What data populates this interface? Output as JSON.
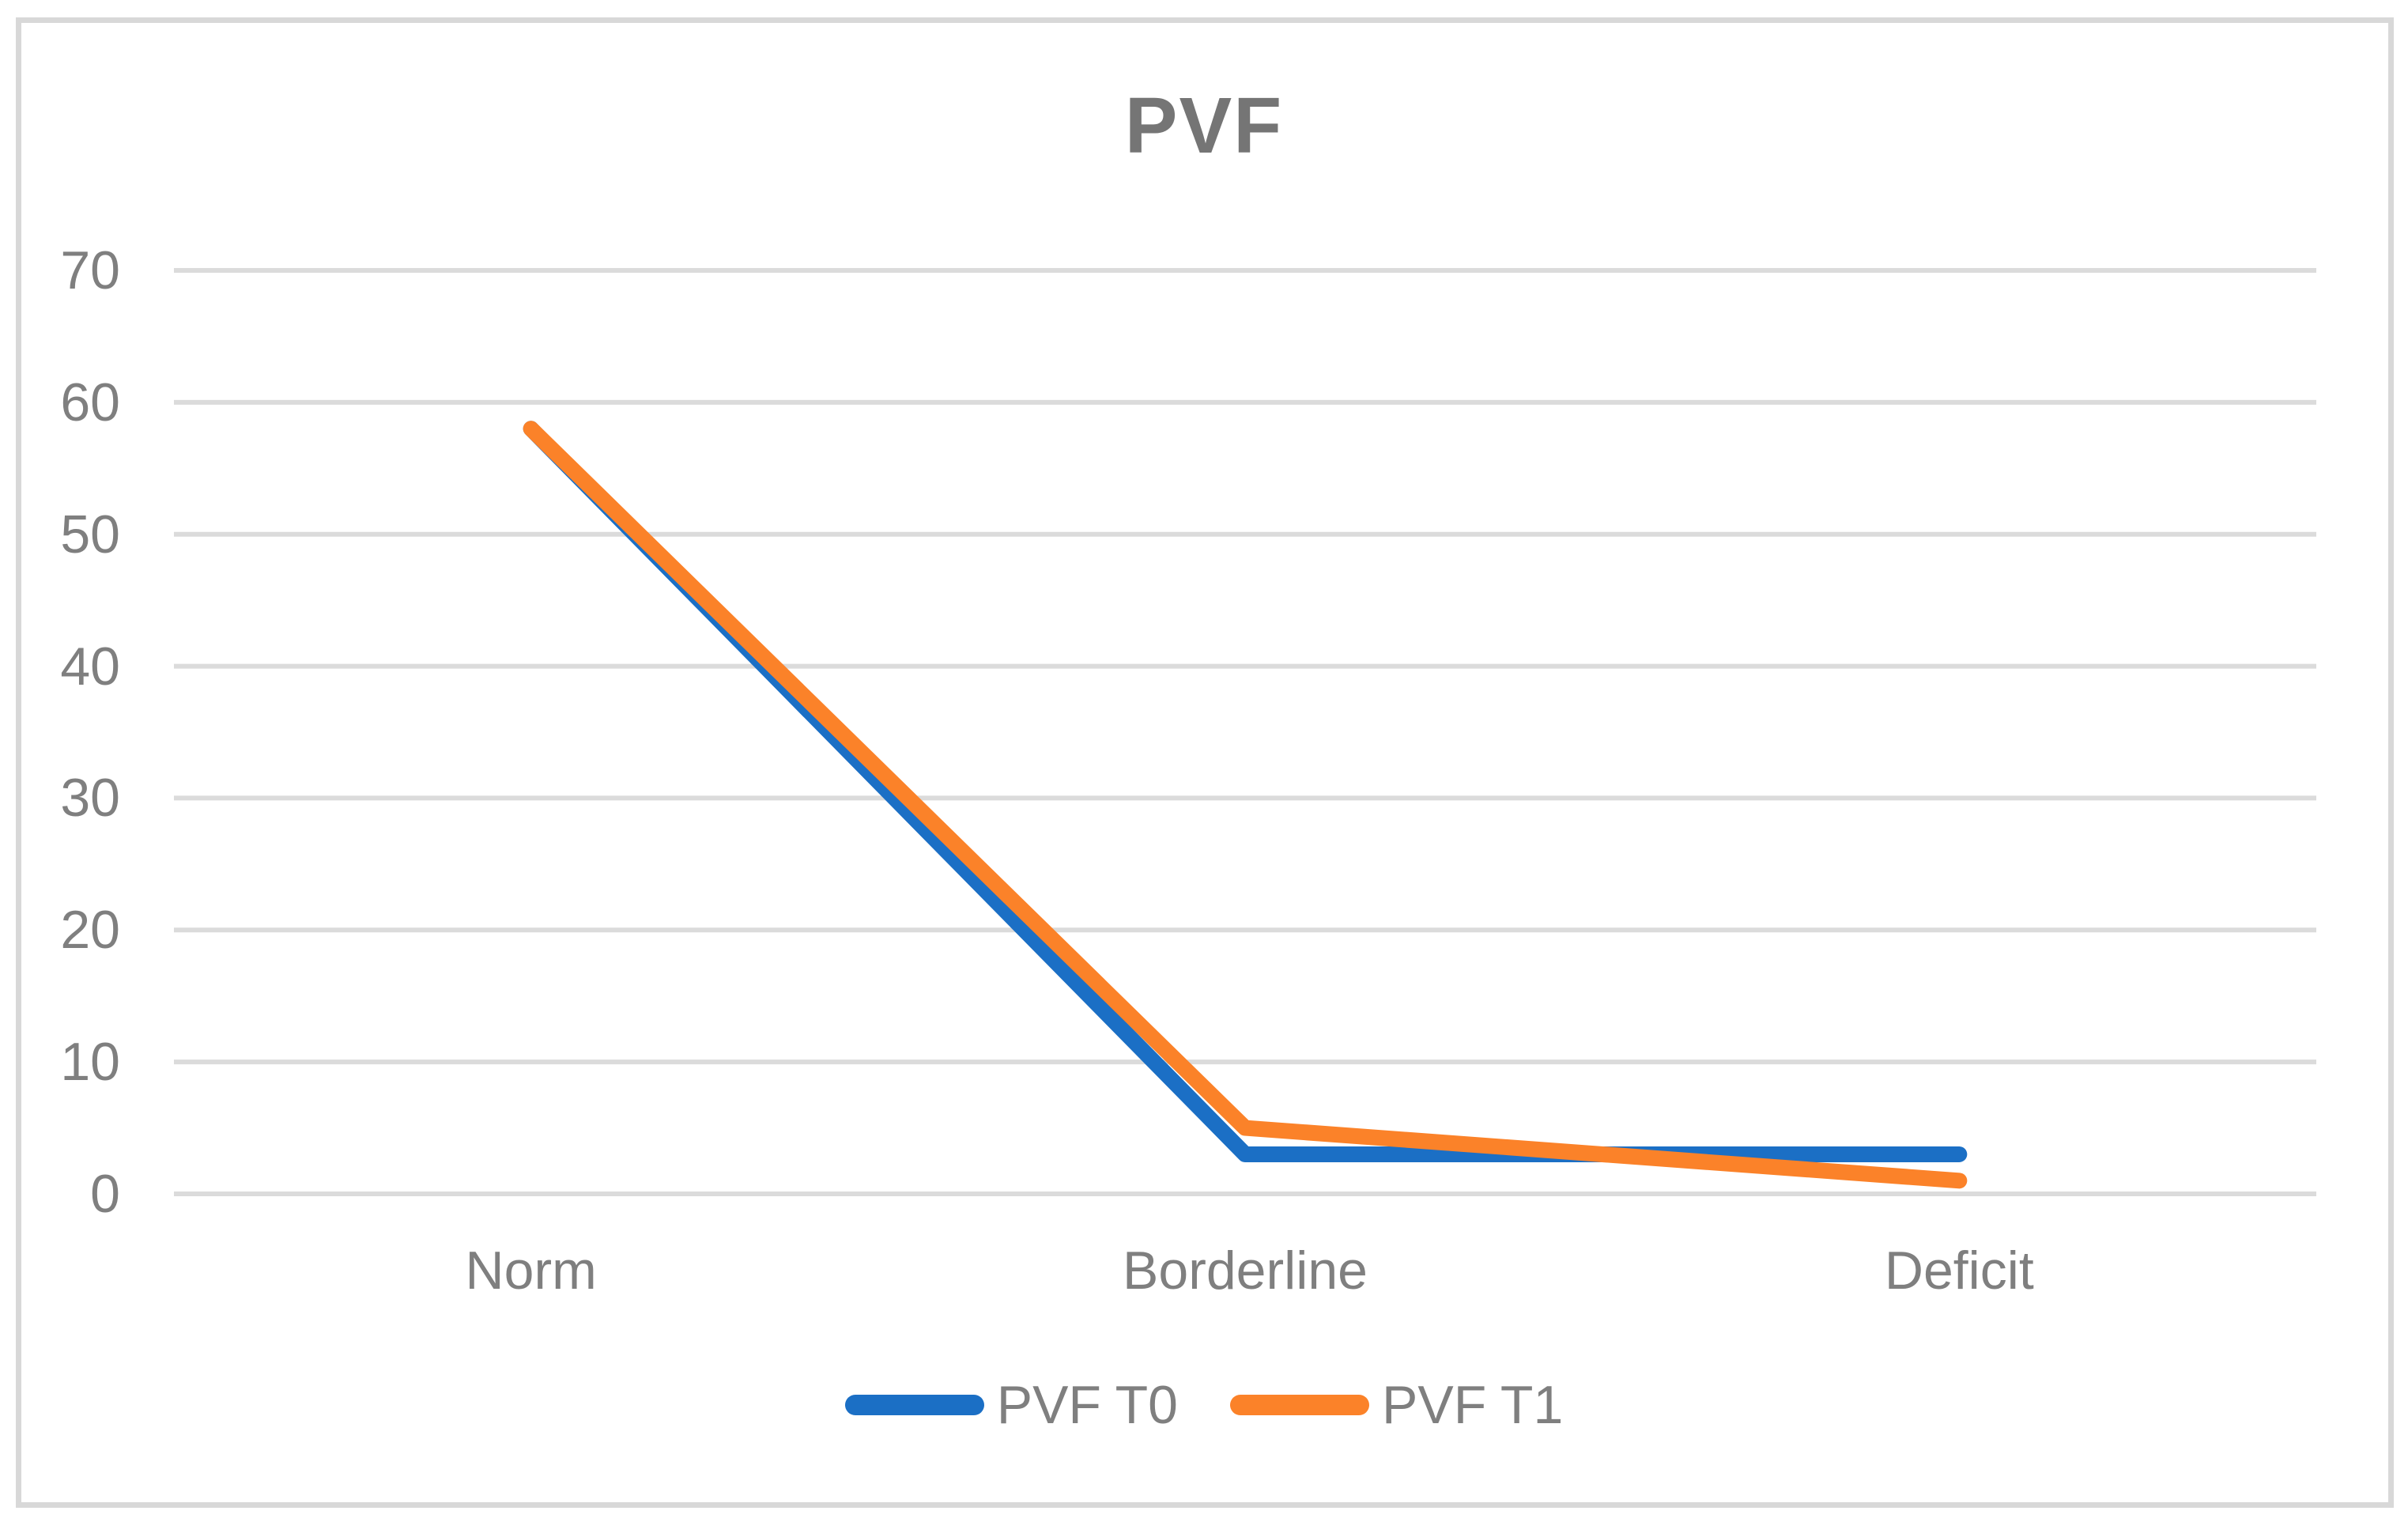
{
  "chart_data": {
    "type": "line",
    "title": "PVF",
    "categories": [
      "Norm",
      "Borderline",
      "Deficit"
    ],
    "series": [
      {
        "name": "PVF T0",
        "color": "#1b6fc5",
        "values": [
          58,
          3,
          3
        ]
      },
      {
        "name": "PVF T1",
        "color": "#fb8229",
        "values": [
          58,
          5,
          1
        ]
      }
    ],
    "xlabel": "",
    "ylabel": "",
    "ylim": [
      0,
      70
    ],
    "yticks": [
      0,
      10,
      20,
      30,
      40,
      50,
      60,
      70
    ],
    "grid": true,
    "gridline_color": "#dbdbdb",
    "text_color": "#7f7f7f",
    "title_color": "#757575",
    "legend_position": "bottom"
  }
}
